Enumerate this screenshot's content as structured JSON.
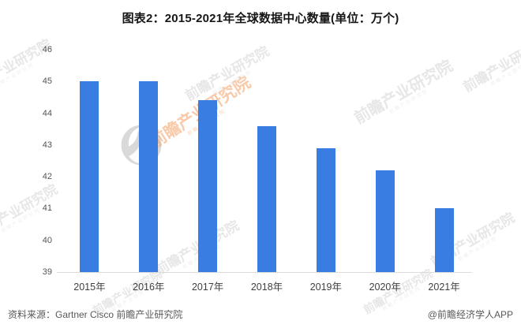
{
  "title": "图表2：2015-2021年全球数据中心数量(单位：万个)",
  "chart_data": {
    "type": "bar",
    "categories": [
      "2015年",
      "2016年",
      "2017年",
      "2018年",
      "2019年",
      "2020年",
      "2021年"
    ],
    "values": [
      45.0,
      45.0,
      44.4,
      43.6,
      42.9,
      42.2,
      41.0
    ],
    "title": "图表2：2015-2021年全球数据中心数量(单位：万个)",
    "xlabel": "",
    "ylabel": "",
    "unit": "万个",
    "ylim": [
      39,
      46
    ],
    "yticks": [
      39,
      40,
      41,
      42,
      43,
      44,
      45,
      46
    ],
    "grid": false,
    "legend": null,
    "bar_color": "#3a7de2",
    "axis_line_color": "#dcdcdc"
  },
  "footer": {
    "source": "资料来源：Gartner Cisco 前瞻产业研究院",
    "credit": "@前瞻经济学人APP"
  },
  "watermark": {
    "text": "前瞻产业研究院",
    "tile_color": "#e7e7e7",
    "brand_color": "#f39e63",
    "logo_icon": "globe-icon"
  }
}
